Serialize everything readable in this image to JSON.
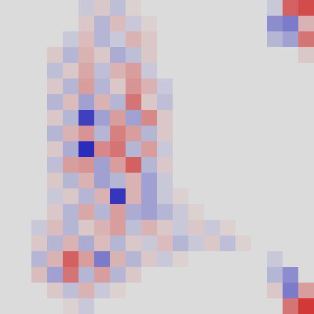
{
  "chart_data": {
    "type": "heatmap",
    "tick_labels": false,
    "color_range": [
      -1,
      1
    ],
    "cells": [
      [
        0,
        0,
        0,
        0,
        0,
        -0.1,
        0.1,
        -0.15,
        0.05,
        0,
        0,
        0,
        0,
        0,
        0,
        0,
        0,
        -0.1,
        0.6,
        0.7
      ],
      [
        0,
        0,
        0,
        0,
        0,
        0.1,
        -0.2,
        0.15,
        -0.1,
        0.05,
        0,
        0,
        0,
        0,
        0,
        0,
        0,
        -0.4,
        -0.5,
        0.2
      ],
      [
        0,
        0,
        0,
        0,
        -0.1,
        0.15,
        -0.2,
        -0.1,
        0.2,
        0.1,
        0,
        0,
        0,
        0,
        0,
        0,
        0,
        -0.2,
        -0.3,
        0.5
      ],
      [
        0,
        0,
        0,
        0.1,
        -0.2,
        0.2,
        0.1,
        -0.25,
        -0.15,
        0.1,
        0,
        0,
        0,
        0,
        0,
        0,
        0,
        0,
        0,
        0.1
      ],
      [
        0,
        0,
        0,
        -0.15,
        0.1,
        0.25,
        -0.15,
        0.2,
        0.3,
        -0.1,
        0,
        0,
        0,
        0,
        0,
        0,
        0,
        0,
        0,
        0
      ],
      [
        0,
        0,
        0,
        0.1,
        -0.2,
        0.3,
        -0.2,
        0.1,
        0.35,
        0.2,
        -0.1,
        0,
        0,
        0,
        0,
        0,
        0,
        0,
        0,
        0
      ],
      [
        0,
        0,
        0,
        -0.2,
        0.15,
        -0.3,
        0.2,
        -0.2,
        0.5,
        0.1,
        -0.15,
        0,
        0,
        0,
        0,
        0,
        0,
        0,
        0,
        0
      ],
      [
        0,
        0,
        0,
        0.1,
        -0.2,
        -0.8,
        -0.3,
        0.3,
        -0.3,
        0.4,
        0.1,
        0,
        0,
        0,
        0,
        0,
        0,
        0,
        0,
        0
      ],
      [
        0,
        0,
        0,
        -0.2,
        0.2,
        0.35,
        -0.2,
        0.45,
        0.3,
        -0.2,
        0.1,
        0,
        0,
        0,
        0,
        0,
        0,
        0,
        0,
        0
      ],
      [
        0,
        0,
        0,
        0.1,
        -0.25,
        -0.9,
        0.4,
        0.5,
        -0.2,
        0.3,
        -0.1,
        0,
        0,
        0,
        0,
        0,
        0,
        0,
        0,
        0
      ],
      [
        0,
        0,
        0,
        -0.15,
        0.3,
        0.35,
        -0.3,
        0.3,
        0.6,
        -0.2,
        0.1,
        0,
        0,
        0,
        0,
        0,
        0,
        0,
        0,
        0
      ],
      [
        0,
        0,
        0,
        0.1,
        -0.2,
        0.2,
        -0.3,
        -0.2,
        0.2,
        -0.3,
        -0.1,
        0,
        0,
        0,
        0,
        0,
        0,
        0,
        0,
        0
      ],
      [
        0,
        0,
        0,
        -0.1,
        0.1,
        -0.2,
        0.2,
        -0.85,
        0.2,
        -0.3,
        -0.1,
        0.05,
        0,
        0,
        0,
        0,
        0,
        0,
        0,
        0
      ],
      [
        0,
        0,
        0,
        0.1,
        -0.2,
        0.25,
        -0.2,
        0.3,
        -0.25,
        -0.3,
        -0.2,
        -0.1,
        0.05,
        0,
        0,
        0,
        0,
        0,
        0,
        0
      ],
      [
        0,
        0,
        -0.1,
        0.15,
        -0.2,
        0.1,
        0.2,
        0.3,
        -0.15,
        0.2,
        0.1,
        -0.1,
        0.1,
        -0.1,
        0.05,
        0,
        0,
        0,
        0,
        0
      ],
      [
        0,
        0,
        0.1,
        -0.2,
        0.2,
        -0.25,
        0.15,
        -0.2,
        0.1,
        -0.1,
        0.15,
        -0.2,
        -0.1,
        0.1,
        -0.15,
        0.05,
        0,
        0,
        0,
        0
      ],
      [
        0,
        0,
        -0.2,
        0.2,
        0.6,
        0.3,
        -0.5,
        0.2,
        -0.2,
        0.1,
        -0.1,
        0.05,
        0,
        0,
        0,
        0,
        0,
        -0.1,
        0,
        0
      ],
      [
        0,
        0,
        0.15,
        -0.3,
        0.5,
        -0.2,
        0.3,
        -0.2,
        0.1,
        0,
        0,
        0,
        0,
        0,
        0,
        0,
        0,
        -0.2,
        -0.4,
        0
      ],
      [
        0,
        0,
        0,
        0.1,
        -0.15,
        0.2,
        -0.1,
        0.05,
        0,
        0,
        0,
        0,
        0,
        0,
        0,
        0,
        0,
        0.1,
        -0.5,
        0.3
      ],
      [
        0,
        0,
        0,
        0,
        0.05,
        -0.1,
        0,
        0,
        0,
        0,
        0,
        0,
        0,
        0,
        0,
        0,
        0,
        0,
        0.5,
        0.8
      ]
    ]
  }
}
